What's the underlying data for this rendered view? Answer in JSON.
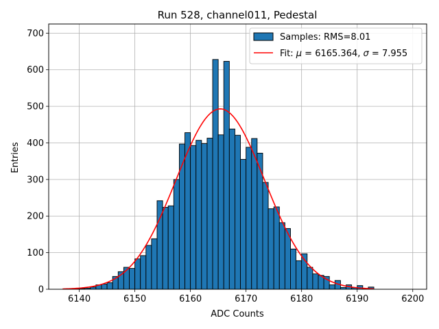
{
  "chart_data": {
    "type": "bar",
    "title": "Run 528, channel011, Pedestal",
    "xlabel": "ADC Counts",
    "ylabel": "Entries",
    "xlim": [
      6134.5,
      6202.5
    ],
    "ylim": [
      0,
      725
    ],
    "xticks": [
      6140,
      6150,
      6160,
      6170,
      6180,
      6190,
      6200
    ],
    "yticks": [
      0,
      100,
      200,
      300,
      400,
      500,
      600,
      700
    ],
    "grid": true,
    "legend_position": "top-right",
    "colors": {
      "bars": "#1f77b4",
      "bar_edge": "#000000",
      "fit": "#ff0000",
      "grid": "#b0b0b0"
    },
    "histogram": {
      "name": "Samples: RMS=8.01",
      "bin_width": 1,
      "bins": [
        [
          6139,
          1
        ],
        [
          6140,
          2
        ],
        [
          6141,
          3
        ],
        [
          6142,
          6
        ],
        [
          6143,
          12
        ],
        [
          6144,
          14
        ],
        [
          6145,
          18
        ],
        [
          6146,
          35
        ],
        [
          6147,
          48
        ],
        [
          6148,
          60
        ],
        [
          6149,
          57
        ],
        [
          6150,
          83
        ],
        [
          6151,
          92
        ],
        [
          6152,
          120
        ],
        [
          6153,
          138
        ],
        [
          6154,
          242
        ],
        [
          6155,
          224
        ],
        [
          6156,
          228
        ],
        [
          6157,
          300
        ],
        [
          6158,
          397
        ],
        [
          6159,
          428
        ],
        [
          6160,
          393
        ],
        [
          6161,
          407
        ],
        [
          6162,
          398
        ],
        [
          6163,
          413
        ],
        [
          6164,
          628
        ],
        [
          6165,
          422
        ],
        [
          6166,
          623
        ],
        [
          6167,
          438
        ],
        [
          6168,
          421
        ],
        [
          6169,
          355
        ],
        [
          6170,
          388
        ],
        [
          6171,
          412
        ],
        [
          6172,
          372
        ],
        [
          6173,
          292
        ],
        [
          6174,
          220
        ],
        [
          6175,
          225
        ],
        [
          6176,
          182
        ],
        [
          6177,
          166
        ],
        [
          6178,
          110
        ],
        [
          6179,
          78
        ],
        [
          6180,
          97
        ],
        [
          6181,
          60
        ],
        [
          6182,
          42
        ],
        [
          6183,
          38
        ],
        [
          6184,
          35
        ],
        [
          6185,
          12
        ],
        [
          6186,
          24
        ],
        [
          6187,
          5
        ],
        [
          6188,
          12
        ],
        [
          6189,
          4
        ],
        [
          6190,
          10
        ],
        [
          6191,
          2
        ],
        [
          6192,
          6
        ]
      ]
    },
    "fit": {
      "label_prefix": "Fit: ",
      "mu_symbol": "μ",
      "sigma_symbol": "σ",
      "mu": "6165.364",
      "sigma": "7.955",
      "mean": 6165.364,
      "std": 7.955,
      "amplitude": 493,
      "x_range": [
        6137,
        6193
      ]
    }
  }
}
